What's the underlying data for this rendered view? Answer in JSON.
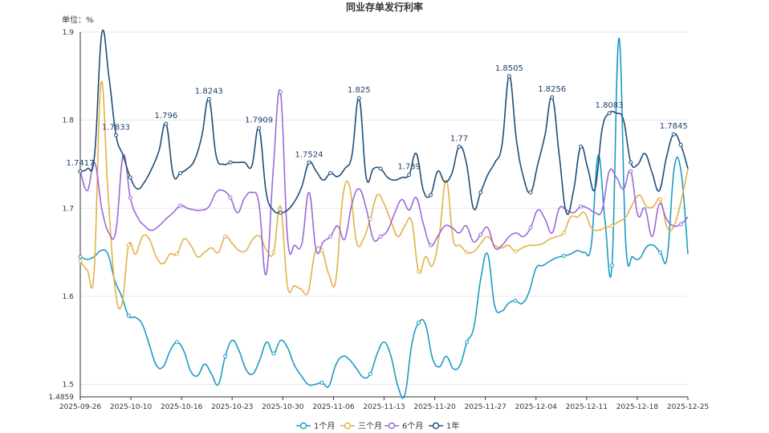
{
  "chart_data": {
    "type": "line",
    "title": "同业存单发行利率",
    "unit_label": "单位：%",
    "xlabel": "",
    "ylabel": "",
    "ylim": [
      1.4859,
      1.9
    ],
    "y_ticks": [
      "1.4859",
      "1.5",
      "1.6",
      "1.7",
      "1.8",
      "1.9"
    ],
    "x_ticks": [
      "2025-09-26",
      "2025-10-10",
      "2025-10-16",
      "2025-10-23",
      "2025-10-30",
      "2025-11-06",
      "2025-11-13",
      "2025-11-20",
      "2025-11-27",
      "2025-12-04",
      "2025-12-11",
      "2025-12-18",
      "2025-12-25"
    ],
    "grid": "horizontal",
    "legend_position": "bottom",
    "series": [
      {
        "name": "1个月",
        "color": "#1e9bc4",
        "values": [
          1.645,
          1.642,
          1.645,
          1.652,
          1.648,
          1.618,
          1.6,
          1.578,
          1.576,
          1.568,
          1.545,
          1.522,
          1.52,
          1.538,
          1.548,
          1.538,
          1.515,
          1.51,
          1.523,
          1.512,
          1.5,
          1.532,
          1.55,
          1.538,
          1.517,
          1.512,
          1.528,
          1.548,
          1.535,
          1.55,
          1.542,
          1.522,
          1.51,
          1.5,
          1.5,
          1.502,
          1.498,
          1.522,
          1.532,
          1.528,
          1.518,
          1.508,
          1.512,
          1.535,
          1.548,
          1.532,
          1.498,
          1.488,
          1.545,
          1.57,
          1.568,
          1.53,
          1.52,
          1.532,
          1.518,
          1.522,
          1.548,
          1.565,
          1.62,
          1.648,
          1.59,
          1.583,
          1.592,
          1.595,
          1.592,
          1.605,
          1.632,
          1.635,
          1.64,
          1.644,
          1.646,
          1.648,
          1.652,
          1.65,
          1.658,
          1.76,
          1.685,
          1.635,
          1.893,
          1.66,
          1.645,
          1.643,
          1.656,
          1.658,
          1.65,
          1.645,
          1.745,
          1.742,
          1.648
        ]
      },
      {
        "name": "三个月",
        "color": "#e3b14a",
        "values": [
          1.64,
          1.63,
          1.628,
          1.842,
          1.72,
          1.612,
          1.59,
          1.658,
          1.648,
          1.668,
          1.665,
          1.645,
          1.637,
          1.648,
          1.648,
          1.665,
          1.658,
          1.645,
          1.65,
          1.655,
          1.65,
          1.668,
          1.66,
          1.652,
          1.652,
          1.665,
          1.668,
          1.652,
          1.65,
          1.702,
          1.612,
          1.612,
          1.608,
          1.605,
          1.65,
          1.652,
          1.625,
          1.618,
          1.712,
          1.725,
          1.662,
          1.665,
          1.688,
          1.715,
          1.705,
          1.685,
          1.668,
          1.68,
          1.685,
          1.628,
          1.645,
          1.635,
          1.67,
          1.732,
          1.665,
          1.658,
          1.65,
          1.651,
          1.66,
          1.668,
          1.658,
          1.655,
          1.658,
          1.651,
          1.655,
          1.658,
          1.658,
          1.66,
          1.665,
          1.668,
          1.672,
          1.69,
          1.69,
          1.695,
          1.678,
          1.675,
          1.678,
          1.68,
          1.685,
          1.69,
          1.705,
          1.715,
          1.702,
          1.702,
          1.71,
          1.678,
          1.68,
          1.708,
          1.745
        ]
      },
      {
        "name": "6个月",
        "color": "#9b6ad8",
        "values": [
          1.742,
          1.72,
          1.752,
          1.7,
          1.672,
          1.675,
          1.76,
          1.712,
          1.69,
          1.68,
          1.675,
          1.68,
          1.688,
          1.695,
          1.703,
          1.7,
          1.698,
          1.698,
          1.702,
          1.718,
          1.72,
          1.712,
          1.695,
          1.712,
          1.718,
          1.705,
          1.625,
          1.745,
          1.832,
          1.665,
          1.658,
          1.66,
          1.718,
          1.652,
          1.662,
          1.668,
          1.68,
          1.665,
          1.705,
          1.722,
          1.7,
          1.665,
          1.668,
          1.675,
          1.695,
          1.71,
          1.698,
          1.712,
          1.682,
          1.658,
          1.668,
          1.68,
          1.678,
          1.672,
          1.68,
          1.662,
          1.67,
          1.678,
          1.655,
          1.658,
          1.668,
          1.672,
          1.668,
          1.678,
          1.698,
          1.688,
          1.672,
          1.7,
          1.698,
          1.695,
          1.702,
          1.7,
          1.695,
          1.698,
          1.742,
          1.735,
          1.722,
          1.742,
          1.692,
          1.7,
          1.668,
          1.705,
          1.688,
          1.68,
          1.682,
          1.69
        ]
      },
      {
        "name": "1年",
        "color": "#1f4e79",
        "values": [
          1.742,
          1.745,
          1.76,
          1.898,
          1.85,
          1.783,
          1.76,
          1.735,
          1.722,
          1.73,
          1.745,
          1.765,
          1.796,
          1.738,
          1.74,
          1.745,
          1.755,
          1.782,
          1.824,
          1.76,
          1.75,
          1.752,
          1.752,
          1.752,
          1.748,
          1.791,
          1.718,
          1.698,
          1.695,
          1.698,
          1.708,
          1.725,
          1.752,
          1.742,
          1.732,
          1.74,
          1.736,
          1.745,
          1.76,
          1.825,
          1.735,
          1.745,
          1.745,
          1.735,
          1.732,
          1.735,
          1.738,
          1.762,
          1.72,
          1.715,
          1.742,
          1.73,
          1.74,
          1.77,
          1.752,
          1.7,
          1.718,
          1.738,
          1.752,
          1.772,
          1.85,
          1.778,
          1.735,
          1.718,
          1.75,
          1.783,
          1.826,
          1.76,
          1.695,
          1.72,
          1.77,
          1.745,
          1.722,
          1.79,
          1.808,
          1.808,
          1.8,
          1.752,
          1.75,
          1.762,
          1.74,
          1.72,
          1.758,
          1.784,
          1.772,
          1.745
        ]
      }
    ],
    "annotations": [
      {
        "text": "1.7417",
        "series": "1年",
        "index": 0
      },
      {
        "text": "1.7833",
        "series": "1年",
        "index": 5
      },
      {
        "text": "1.796",
        "series": "1年",
        "index": 12
      },
      {
        "text": "1.8243",
        "series": "1年",
        "index": 18
      },
      {
        "text": "1.7909",
        "series": "1年",
        "index": 25
      },
      {
        "text": "1.7524",
        "series": "1年",
        "index": 32
      },
      {
        "text": "1.825",
        "series": "1年",
        "index": 39
      },
      {
        "text": "1.739",
        "series": "1年",
        "index": 46
      },
      {
        "text": "1.77",
        "series": "1年",
        "index": 53
      },
      {
        "text": "1.8505",
        "series": "1年",
        "index": 60
      },
      {
        "text": "1.8256",
        "series": "1年",
        "index": 66
      },
      {
        "text": "1.8083",
        "series": "1年",
        "index": 74
      },
      {
        "text": "1.7845",
        "series": "1年",
        "index": 83
      }
    ]
  }
}
